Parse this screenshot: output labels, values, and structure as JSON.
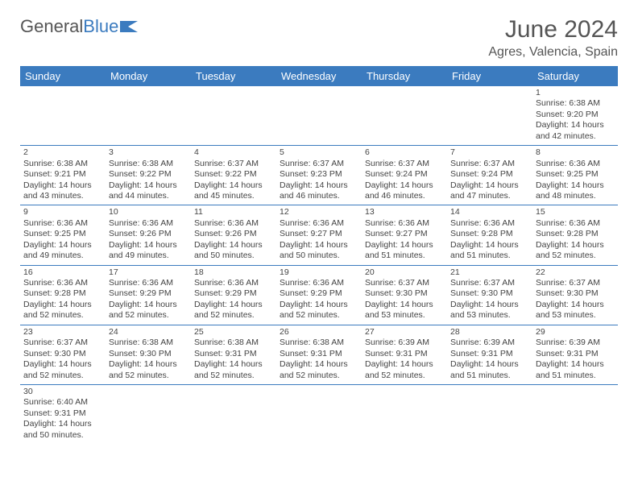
{
  "logo": {
    "text1": "General",
    "text2": "Blue"
  },
  "title": "June 2024",
  "location": "Agres, Valencia, Spain",
  "headers": [
    "Sunday",
    "Monday",
    "Tuesday",
    "Wednesday",
    "Thursday",
    "Friday",
    "Saturday"
  ],
  "colors": {
    "header_bg": "#3b7bbf",
    "header_text": "#ffffff",
    "daynum_bg": "#e9e9e9",
    "border": "#3b7bbf"
  },
  "weeks": [
    [
      null,
      null,
      null,
      null,
      null,
      null,
      {
        "n": "1",
        "sunrise": "Sunrise: 6:38 AM",
        "sunset": "Sunset: 9:20 PM",
        "daylight": "Daylight: 14 hours and 42 minutes."
      }
    ],
    [
      {
        "n": "2",
        "sunrise": "Sunrise: 6:38 AM",
        "sunset": "Sunset: 9:21 PM",
        "daylight": "Daylight: 14 hours and 43 minutes."
      },
      {
        "n": "3",
        "sunrise": "Sunrise: 6:38 AM",
        "sunset": "Sunset: 9:22 PM",
        "daylight": "Daylight: 14 hours and 44 minutes."
      },
      {
        "n": "4",
        "sunrise": "Sunrise: 6:37 AM",
        "sunset": "Sunset: 9:22 PM",
        "daylight": "Daylight: 14 hours and 45 minutes."
      },
      {
        "n": "5",
        "sunrise": "Sunrise: 6:37 AM",
        "sunset": "Sunset: 9:23 PM",
        "daylight": "Daylight: 14 hours and 46 minutes."
      },
      {
        "n": "6",
        "sunrise": "Sunrise: 6:37 AM",
        "sunset": "Sunset: 9:24 PM",
        "daylight": "Daylight: 14 hours and 46 minutes."
      },
      {
        "n": "7",
        "sunrise": "Sunrise: 6:37 AM",
        "sunset": "Sunset: 9:24 PM",
        "daylight": "Daylight: 14 hours and 47 minutes."
      },
      {
        "n": "8",
        "sunrise": "Sunrise: 6:36 AM",
        "sunset": "Sunset: 9:25 PM",
        "daylight": "Daylight: 14 hours and 48 minutes."
      }
    ],
    [
      {
        "n": "9",
        "sunrise": "Sunrise: 6:36 AM",
        "sunset": "Sunset: 9:25 PM",
        "daylight": "Daylight: 14 hours and 49 minutes."
      },
      {
        "n": "10",
        "sunrise": "Sunrise: 6:36 AM",
        "sunset": "Sunset: 9:26 PM",
        "daylight": "Daylight: 14 hours and 49 minutes."
      },
      {
        "n": "11",
        "sunrise": "Sunrise: 6:36 AM",
        "sunset": "Sunset: 9:26 PM",
        "daylight": "Daylight: 14 hours and 50 minutes."
      },
      {
        "n": "12",
        "sunrise": "Sunrise: 6:36 AM",
        "sunset": "Sunset: 9:27 PM",
        "daylight": "Daylight: 14 hours and 50 minutes."
      },
      {
        "n": "13",
        "sunrise": "Sunrise: 6:36 AM",
        "sunset": "Sunset: 9:27 PM",
        "daylight": "Daylight: 14 hours and 51 minutes."
      },
      {
        "n": "14",
        "sunrise": "Sunrise: 6:36 AM",
        "sunset": "Sunset: 9:28 PM",
        "daylight": "Daylight: 14 hours and 51 minutes."
      },
      {
        "n": "15",
        "sunrise": "Sunrise: 6:36 AM",
        "sunset": "Sunset: 9:28 PM",
        "daylight": "Daylight: 14 hours and 52 minutes."
      }
    ],
    [
      {
        "n": "16",
        "sunrise": "Sunrise: 6:36 AM",
        "sunset": "Sunset: 9:28 PM",
        "daylight": "Daylight: 14 hours and 52 minutes."
      },
      {
        "n": "17",
        "sunrise": "Sunrise: 6:36 AM",
        "sunset": "Sunset: 9:29 PM",
        "daylight": "Daylight: 14 hours and 52 minutes."
      },
      {
        "n": "18",
        "sunrise": "Sunrise: 6:36 AM",
        "sunset": "Sunset: 9:29 PM",
        "daylight": "Daylight: 14 hours and 52 minutes."
      },
      {
        "n": "19",
        "sunrise": "Sunrise: 6:36 AM",
        "sunset": "Sunset: 9:29 PM",
        "daylight": "Daylight: 14 hours and 52 minutes."
      },
      {
        "n": "20",
        "sunrise": "Sunrise: 6:37 AM",
        "sunset": "Sunset: 9:30 PM",
        "daylight": "Daylight: 14 hours and 53 minutes."
      },
      {
        "n": "21",
        "sunrise": "Sunrise: 6:37 AM",
        "sunset": "Sunset: 9:30 PM",
        "daylight": "Daylight: 14 hours and 53 minutes."
      },
      {
        "n": "22",
        "sunrise": "Sunrise: 6:37 AM",
        "sunset": "Sunset: 9:30 PM",
        "daylight": "Daylight: 14 hours and 53 minutes."
      }
    ],
    [
      {
        "n": "23",
        "sunrise": "Sunrise: 6:37 AM",
        "sunset": "Sunset: 9:30 PM",
        "daylight": "Daylight: 14 hours and 52 minutes."
      },
      {
        "n": "24",
        "sunrise": "Sunrise: 6:38 AM",
        "sunset": "Sunset: 9:30 PM",
        "daylight": "Daylight: 14 hours and 52 minutes."
      },
      {
        "n": "25",
        "sunrise": "Sunrise: 6:38 AM",
        "sunset": "Sunset: 9:31 PM",
        "daylight": "Daylight: 14 hours and 52 minutes."
      },
      {
        "n": "26",
        "sunrise": "Sunrise: 6:38 AM",
        "sunset": "Sunset: 9:31 PM",
        "daylight": "Daylight: 14 hours and 52 minutes."
      },
      {
        "n": "27",
        "sunrise": "Sunrise: 6:39 AM",
        "sunset": "Sunset: 9:31 PM",
        "daylight": "Daylight: 14 hours and 52 minutes."
      },
      {
        "n": "28",
        "sunrise": "Sunrise: 6:39 AM",
        "sunset": "Sunset: 9:31 PM",
        "daylight": "Daylight: 14 hours and 51 minutes."
      },
      {
        "n": "29",
        "sunrise": "Sunrise: 6:39 AM",
        "sunset": "Sunset: 9:31 PM",
        "daylight": "Daylight: 14 hours and 51 minutes."
      }
    ],
    [
      {
        "n": "30",
        "sunrise": "Sunrise: 6:40 AM",
        "sunset": "Sunset: 9:31 PM",
        "daylight": "Daylight: 14 hours and 50 minutes."
      },
      null,
      null,
      null,
      null,
      null,
      null
    ]
  ]
}
